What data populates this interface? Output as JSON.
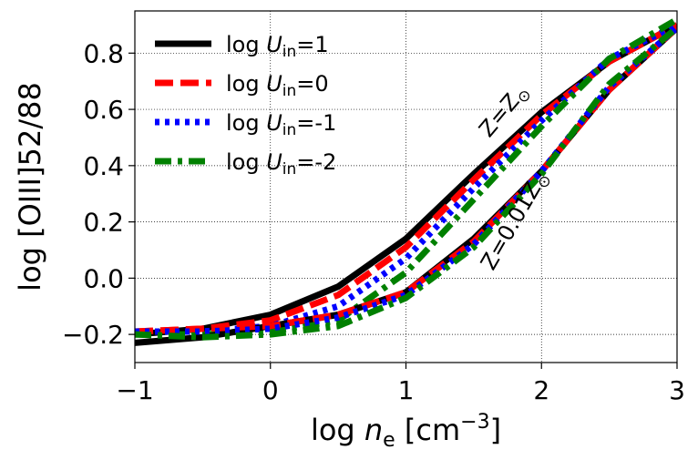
{
  "chart_data": {
    "type": "line",
    "title": "",
    "xlabel": "log n_e [cm^-3]",
    "ylabel": "log [OIII]52/88",
    "xlim": [
      -1,
      3
    ],
    "ylim": [
      -0.3,
      0.95
    ],
    "xticks": [
      -1,
      0,
      1,
      2,
      3
    ],
    "xtick_labels": [
      "−1",
      "0",
      "1",
      "2",
      "3"
    ],
    "yticks": [
      -0.2,
      0.0,
      0.2,
      0.4,
      0.6,
      0.8
    ],
    "ytick_labels": [
      "−0.2",
      "0.0",
      "0.2",
      "0.4",
      "0.6",
      "0.8"
    ],
    "grid": true,
    "legend_position": "top-left",
    "series": [
      {
        "name": "log U_in=1",
        "color": "#000000",
        "dash": "solid",
        "metallicity": "Z=Z_sun",
        "x": [
          -1,
          -0.5,
          0,
          0.5,
          1,
          1.5,
          2,
          2.5,
          3
        ],
        "y": [
          -0.2,
          -0.18,
          -0.13,
          -0.03,
          0.14,
          0.37,
          0.59,
          0.77,
          0.9
        ]
      },
      {
        "name": "log U_in=0",
        "color": "#ff0000",
        "dash": "dashed",
        "metallicity": "Z=Z_sun",
        "x": [
          -1,
          -0.5,
          0,
          0.5,
          1,
          1.5,
          2,
          2.5,
          3
        ],
        "y": [
          -0.19,
          -0.18,
          -0.15,
          -0.06,
          0.11,
          0.35,
          0.58,
          0.77,
          0.9
        ]
      },
      {
        "name": "log U_in=-1",
        "color": "#0000ff",
        "dash": "dotted",
        "metallicity": "Z=Z_sun",
        "x": [
          -1,
          -0.5,
          0,
          0.5,
          1,
          1.5,
          2,
          2.5,
          3
        ],
        "y": [
          -0.19,
          -0.19,
          -0.17,
          -0.1,
          0.07,
          0.32,
          0.56,
          0.78,
          0.9
        ]
      },
      {
        "name": "log U_in=-2",
        "color": "#008000",
        "dash": "dashdot",
        "metallicity": "Z=Z_sun",
        "x": [
          -1,
          -0.5,
          0,
          0.5,
          1,
          1.5,
          2,
          2.5,
          3
        ],
        "y": [
          -0.2,
          -0.2,
          -0.19,
          -0.15,
          0.02,
          0.28,
          0.54,
          0.78,
          0.92
        ]
      },
      {
        "name": "",
        "color": "#000000",
        "dash": "solid",
        "metallicity": "Z=0.01Z_sun",
        "x": [
          -1,
          -0.5,
          0,
          0.5,
          1,
          1.5,
          2,
          2.5,
          3
        ],
        "y": [
          -0.23,
          -0.21,
          -0.17,
          -0.13,
          -0.05,
          0.14,
          0.38,
          0.67,
          0.89
        ]
      },
      {
        "name": "",
        "color": "#ff0000",
        "dash": "dashed",
        "metallicity": "Z=0.01Z_sun",
        "x": [
          -1,
          -0.5,
          0,
          0.5,
          1,
          1.5,
          2,
          2.5,
          3
        ],
        "y": [
          -0.19,
          -0.18,
          -0.17,
          -0.13,
          -0.05,
          0.13,
          0.38,
          0.67,
          0.89
        ]
      },
      {
        "name": "",
        "color": "#0000ff",
        "dash": "dotted",
        "metallicity": "Z=0.01Z_sun",
        "x": [
          -1,
          -0.5,
          0,
          0.5,
          1,
          1.5,
          2,
          2.5,
          3
        ],
        "y": [
          -0.19,
          -0.19,
          -0.18,
          -0.14,
          -0.06,
          0.12,
          0.38,
          0.68,
          0.89
        ]
      },
      {
        "name": "",
        "color": "#008000",
        "dash": "dashdot",
        "metallicity": "Z=0.01Z_sun",
        "x": [
          -1,
          -0.5,
          0,
          0.5,
          1,
          1.5,
          2,
          2.5,
          3
        ],
        "y": [
          -0.2,
          -0.21,
          -0.2,
          -0.17,
          -0.07,
          0.11,
          0.37,
          0.69,
          0.89
        ]
      }
    ],
    "annotations": [
      {
        "text": "Z=Z⊙",
        "x": 1.55,
        "y": 0.5
      },
      {
        "text": "Z=0.01Z⊙",
        "x": 1.55,
        "y": 0.02
      }
    ]
  }
}
